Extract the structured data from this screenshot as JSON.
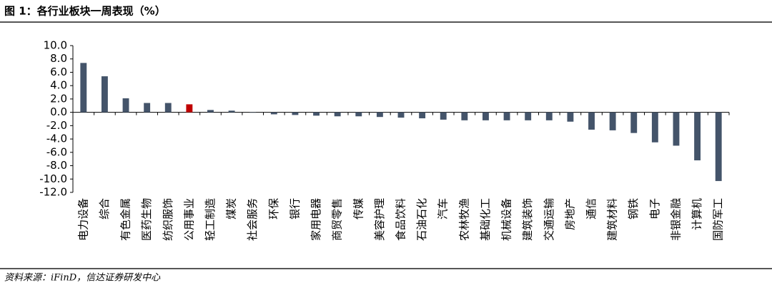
{
  "chart_data": {
    "type": "bar",
    "title": "图 1：各行业板块一周表现（%）",
    "source": "资料来源：iFinD，信达证券研发中心",
    "categories": [
      "电力设备",
      "综合",
      "有色金属",
      "医药生物",
      "纺织服饰",
      "公用事业",
      "轻工制造",
      "煤炭",
      "社会服务",
      "环保",
      "银行",
      "家用电器",
      "商贸零售",
      "传媒",
      "美容护理",
      "食品饮料",
      "石油石化",
      "汽车",
      "农林牧渔",
      "基础化工",
      "机械设备",
      "建筑装饰",
      "交通运输",
      "房地产",
      "通信",
      "建筑材料",
      "钢铁",
      "电子",
      "非银金融",
      "计算机",
      "国防军工"
    ],
    "values": [
      7.4,
      5.4,
      2.1,
      1.4,
      1.4,
      1.2,
      0.35,
      0.25,
      -0.05,
      -0.3,
      -0.4,
      -0.5,
      -0.6,
      -0.6,
      -0.7,
      -0.8,
      -0.9,
      -1.1,
      -1.2,
      -1.2,
      -1.2,
      -1.2,
      -1.2,
      -1.4,
      -2.6,
      -2.7,
      -3.1,
      -4.5,
      -5.0,
      -7.2,
      -10.3
    ],
    "colors": [
      "#44546a",
      "#44546a",
      "#44546a",
      "#44546a",
      "#44546a",
      "#c00000",
      "#44546a",
      "#44546a",
      "#44546a",
      "#44546a",
      "#44546a",
      "#44546a",
      "#44546a",
      "#44546a",
      "#44546a",
      "#44546a",
      "#44546a",
      "#44546a",
      "#44546a",
      "#44546a",
      "#44546a",
      "#44546a",
      "#44546a",
      "#44546a",
      "#44546a",
      "#44546a",
      "#44546a",
      "#44546a",
      "#44546a",
      "#44546a",
      "#44546a"
    ],
    "ylim": [
      -12,
      10
    ],
    "yticks": [
      {
        "value": 10,
        "label": "10.0"
      },
      {
        "value": 8,
        "label": "8.0"
      },
      {
        "value": 6,
        "label": "6.0"
      },
      {
        "value": 4,
        "label": "4.0"
      },
      {
        "value": 2,
        "label": "2.0"
      },
      {
        "value": 0,
        "label": "0.0"
      },
      {
        "value": -2,
        "label": "-2.0"
      },
      {
        "value": -4,
        "label": "-4.0"
      },
      {
        "value": -6,
        "label": "-6.0"
      },
      {
        "value": -8,
        "label": "-8.0"
      },
      {
        "value": -10,
        "label": "-10.0"
      },
      {
        "value": -12,
        "label": "-12.0"
      }
    ]
  }
}
